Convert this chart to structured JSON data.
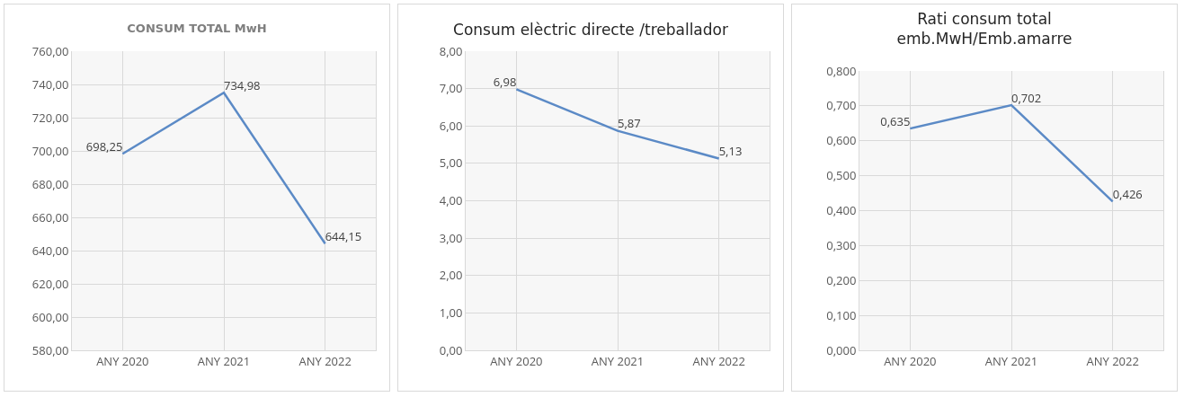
{
  "chart_data": [
    {
      "type": "line",
      "title": "CONSUM TOTAL MwH",
      "categories": [
        "ANY 2020",
        "ANY 2021",
        "ANY 2022"
      ],
      "series": [
        {
          "color": "#5b8ac6",
          "values": [
            698.25,
            734.98,
            644.15
          ],
          "value_labels": [
            "698,25",
            "734,98",
            "644,15"
          ]
        }
      ],
      "ylim": [
        580,
        760
      ],
      "yticks": [
        {
          "value": 580,
          "label": "580,00"
        },
        {
          "value": 600,
          "label": "600,00"
        },
        {
          "value": 620,
          "label": "620,00"
        },
        {
          "value": 640,
          "label": "640,00"
        },
        {
          "value": 660,
          "label": "660,00"
        },
        {
          "value": 680,
          "label": "680,00"
        },
        {
          "value": 700,
          "label": "700,00"
        },
        {
          "value": 720,
          "label": "720,00"
        },
        {
          "value": 740,
          "label": "740,00"
        },
        {
          "value": 760,
          "label": "760,00"
        }
      ],
      "grid": true,
      "marker": "none",
      "line_style": "solid"
    },
    {
      "type": "line",
      "title": "Consum elèctric directe /treballador",
      "categories": [
        "ANY 2020",
        "ANY 2021",
        "ANY 2022"
      ],
      "series": [
        {
          "color": "#5b8ac6",
          "values": [
            6.98,
            5.87,
            5.13
          ],
          "value_labels": [
            "6,98",
            "5,87",
            "5,13"
          ]
        }
      ],
      "ylim": [
        0,
        8
      ],
      "yticks": [
        {
          "value": 0,
          "label": "0,00"
        },
        {
          "value": 1,
          "label": "1,00"
        },
        {
          "value": 2,
          "label": "2,00"
        },
        {
          "value": 3,
          "label": "3,00"
        },
        {
          "value": 4,
          "label": "4,00"
        },
        {
          "value": 5,
          "label": "5,00"
        },
        {
          "value": 6,
          "label": "6,00"
        },
        {
          "value": 7,
          "label": "7,00"
        },
        {
          "value": 8,
          "label": "8,00"
        }
      ],
      "grid": true,
      "marker": "none",
      "line_style": "solid"
    },
    {
      "type": "line",
      "title": "Rati consum total\nemb.MwH/Emb.amarre",
      "categories": [
        "ANY 2020",
        "ANY 2021",
        "ANY 2022"
      ],
      "series": [
        {
          "color": "#5b8ac6",
          "values": [
            0.635,
            0.702,
            0.426
          ],
          "value_labels": [
            "0,635",
            "0,702",
            "0,426"
          ]
        }
      ],
      "ylim": [
        0,
        0.8
      ],
      "yticks": [
        {
          "value": 0,
          "label": "0,000"
        },
        {
          "value": 0.1,
          "label": "0,100"
        },
        {
          "value": 0.2,
          "label": "0,200"
        },
        {
          "value": 0.3,
          "label": "0,300"
        },
        {
          "value": 0.4,
          "label": "0,400"
        },
        {
          "value": 0.5,
          "label": "0,500"
        },
        {
          "value": 0.6,
          "label": "0,600"
        },
        {
          "value": 0.7,
          "label": "0,700"
        },
        {
          "value": 0.8,
          "label": "0,800"
        }
      ],
      "grid": true,
      "marker": "none",
      "line_style": "solid"
    }
  ]
}
